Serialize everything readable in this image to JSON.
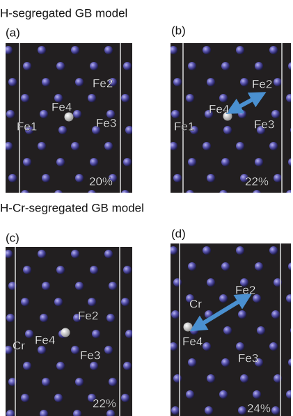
{
  "sections": [
    "H-segregated GB model",
    "H-Cr-segregated GB model"
  ],
  "panels": [
    {
      "label": "(a)",
      "atoms": [
        "Fe2",
        "Fe4",
        "Fe1",
        "Fe3"
      ],
      "percent": "20%"
    },
    {
      "label": "(b)",
      "atoms": [
        "Fe2",
        "Fe4",
        "Fe1",
        "Fe3"
      ],
      "percent": "22%"
    },
    {
      "label": "(c)",
      "atoms": [
        "Fe2",
        "Fe4",
        "Cr",
        "Fe3"
      ],
      "percent": "22%"
    },
    {
      "label": "(d)",
      "atoms": [
        "Cr",
        "Fe2",
        "Fe4",
        "Fe3"
      ],
      "percent": "24%"
    }
  ]
}
